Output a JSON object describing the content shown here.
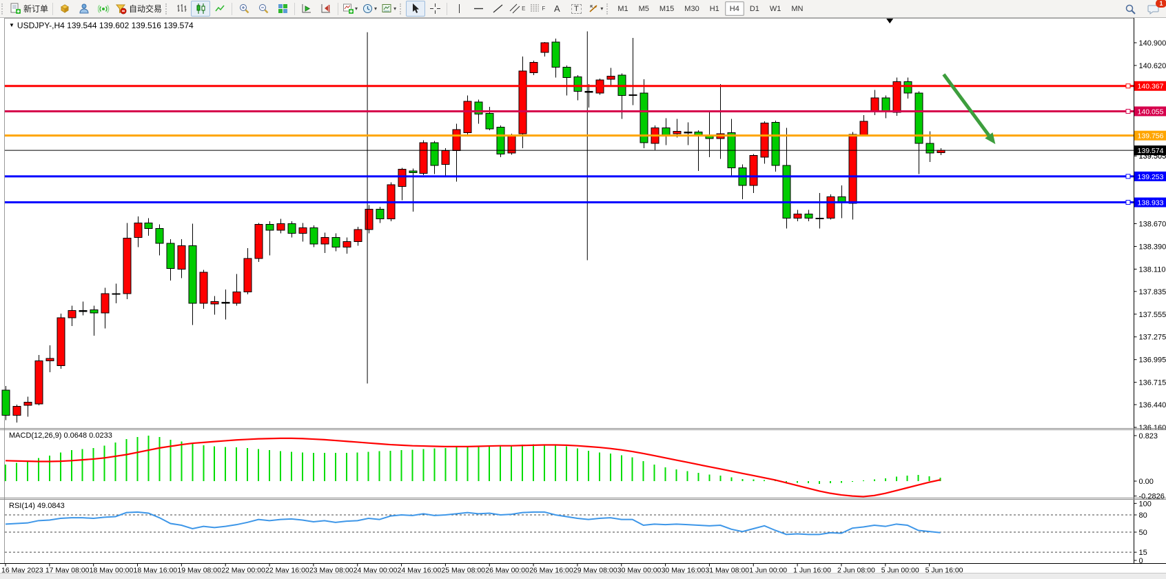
{
  "toolbar": {
    "new_order_label": "新订单",
    "auto_trading_label": "自动交易",
    "timeframes": [
      "M1",
      "M5",
      "M15",
      "M30",
      "H1",
      "H4",
      "D1",
      "W1",
      "MN"
    ],
    "active_timeframe": "H4",
    "notification_count": "1",
    "icon_glyphs": {
      "text_tool": "A",
      "label_tool": "T",
      "channel_suffix": "E",
      "fibo_suffix": "F"
    },
    "icons": [
      "new-order",
      "market",
      "signals",
      "news",
      "auto-trading",
      "bar-chart",
      "candlestick-chart",
      "line-chart",
      "zoom-in",
      "zoom-out",
      "tile-windows",
      "auto-scroll",
      "chart-shift",
      "indicators",
      "periods",
      "templates",
      "cursor",
      "crosshair",
      "vertical-line",
      "horizontal-line",
      "trendline",
      "equidistant-channel",
      "fibonacci",
      "text",
      "text-label",
      "arrows",
      "search",
      "chat"
    ]
  },
  "chart": {
    "dropdown_glyph": "▼",
    "title": "USDJPY-,H4  139.544 139.602 139.516 139.574",
    "symbol": "USDJPY-",
    "period": "H4"
  },
  "indicators": {
    "macd": {
      "label": "MACD(12,26,9) 0.0648 0.0233"
    },
    "rsi": {
      "label": "RSI(14) 49.0843"
    }
  },
  "colors": {
    "bull": "#ff0000",
    "bear": "#00cc00",
    "wick": "#000000",
    "macd_hist": "#00dd00",
    "macd_signal": "#ff0000",
    "rsi": "#3d96e8",
    "line_red": "#ff0000",
    "line_crimson": "#d6004c",
    "line_orange": "#ffa500",
    "line_blue": "#0000ff",
    "line_black": "#000000",
    "arrow": "#3d9e3d"
  },
  "chart_data": {
    "type": "candlestick",
    "symbol": "USDJPY-",
    "timeframe": "H4",
    "ylim": [
      136.16,
      140.96
    ],
    "ohlc_current": {
      "open": 139.544,
      "high": 139.602,
      "low": 139.516,
      "close": 139.574
    },
    "y_ticks": [
      140.9,
      140.62,
      139.505,
      138.67,
      138.39,
      138.11,
      137.835,
      137.555,
      137.275,
      136.995,
      136.715,
      136.44,
      136.16
    ],
    "label_step": 4,
    "time_labels": [
      "16 May 2023",
      "17 May 08:00",
      "18 May 00:00",
      "18 May 16:00",
      "19 May 08:00",
      "22 May 00:00",
      "22 May 16:00",
      "23 May 08:00",
      "24 May 00:00",
      "24 May 16:00",
      "25 May 08:00",
      "26 May 00:00",
      "26 May 16:00",
      "29 May 08:00",
      "30 May 00:00",
      "30 May 16:00",
      "31 May 08:00",
      "1 Jun 00:00",
      "1 Jun 16:00",
      "2 Jun 08:00",
      "5 Jun 00:00",
      "5 Jun 16:00"
    ],
    "candles": [
      [
        136.62,
        136.67,
        136.25,
        136.31
      ],
      [
        136.31,
        136.44,
        136.22,
        136.42
      ],
      [
        136.43,
        136.54,
        136.29,
        136.47
      ],
      [
        136.45,
        137.05,
        136.43,
        136.98
      ],
      [
        136.98,
        137.17,
        136.84,
        137.01
      ],
      [
        136.92,
        137.56,
        136.88,
        137.51
      ],
      [
        137.51,
        137.66,
        137.41,
        137.6
      ],
      [
        137.6,
        137.71,
        137.54,
        137.6
      ],
      [
        137.61,
        137.66,
        137.29,
        137.57
      ],
      [
        137.57,
        137.88,
        137.38,
        137.81
      ],
      [
        137.81,
        137.93,
        137.69,
        137.81
      ],
      [
        137.81,
        138.68,
        137.74,
        138.49
      ],
      [
        138.5,
        138.76,
        138.38,
        138.68
      ],
      [
        138.68,
        138.74,
        138.52,
        138.61
      ],
      [
        138.61,
        138.66,
        138.28,
        138.43
      ],
      [
        138.43,
        138.48,
        137.97,
        138.12
      ],
      [
        138.11,
        138.48,
        138.0,
        138.4
      ],
      [
        138.4,
        138.67,
        137.42,
        137.69
      ],
      [
        137.69,
        138.1,
        137.62,
        138.07
      ],
      [
        137.68,
        137.78,
        137.55,
        137.71
      ],
      [
        137.7,
        137.86,
        137.49,
        137.7
      ],
      [
        137.69,
        138.05,
        137.66,
        137.83
      ],
      [
        137.83,
        138.37,
        137.8,
        138.24
      ],
      [
        138.24,
        138.68,
        138.2,
        138.66
      ],
      [
        138.66,
        138.7,
        138.28,
        138.59
      ],
      [
        138.59,
        138.73,
        138.55,
        138.67
      ],
      [
        138.67,
        138.7,
        138.5,
        138.55
      ],
      [
        138.55,
        138.68,
        138.45,
        138.62
      ],
      [
        138.62,
        138.65,
        138.38,
        138.42
      ],
      [
        138.42,
        138.56,
        138.31,
        138.5
      ],
      [
        138.5,
        138.55,
        138.33,
        138.38
      ],
      [
        138.38,
        138.5,
        138.3,
        138.45
      ],
      [
        138.45,
        138.63,
        138.4,
        138.6
      ],
      [
        138.6,
        138.9,
        138.55,
        138.85
      ],
      [
        138.85,
        138.88,
        138.68,
        138.73
      ],
      [
        138.73,
        139.18,
        138.7,
        139.15
      ],
      [
        139.13,
        139.36,
        138.96,
        139.34
      ],
      [
        139.32,
        139.35,
        138.82,
        139.3
      ],
      [
        139.29,
        139.7,
        139.27,
        139.67
      ],
      [
        139.67,
        139.69,
        139.28,
        139.39
      ],
      [
        139.4,
        139.6,
        139.26,
        139.57
      ],
      [
        139.57,
        139.9,
        139.19,
        139.83
      ],
      [
        139.79,
        140.25,
        139.77,
        140.18
      ],
      [
        140.17,
        140.2,
        139.9,
        140.02
      ],
      [
        140.03,
        140.11,
        139.82,
        139.84
      ],
      [
        139.86,
        139.88,
        139.49,
        139.53
      ],
      [
        139.54,
        139.78,
        139.52,
        139.76
      ],
      [
        139.78,
        140.73,
        139.6,
        140.55
      ],
      [
        140.53,
        140.68,
        140.5,
        140.66
      ],
      [
        140.78,
        140.91,
        140.73,
        140.9
      ],
      [
        140.91,
        140.95,
        140.47,
        140.6
      ],
      [
        140.6,
        140.62,
        140.25,
        140.47
      ],
      [
        140.48,
        140.5,
        140.19,
        140.3
      ],
      [
        140.3,
        140.39,
        140.1,
        140.3
      ],
      [
        140.28,
        140.46,
        140.26,
        140.44
      ],
      [
        140.45,
        140.59,
        140.36,
        140.49
      ],
      [
        140.5,
        140.52,
        139.96,
        140.25
      ],
      [
        140.26,
        140.96,
        140.13,
        140.26
      ],
      [
        140.28,
        140.45,
        139.6,
        139.67
      ],
      [
        139.66,
        139.88,
        139.58,
        139.85
      ],
      [
        139.85,
        139.97,
        139.64,
        139.76
      ],
      [
        139.78,
        139.96,
        139.73,
        139.81
      ],
      [
        139.8,
        139.92,
        139.64,
        139.8
      ],
      [
        139.8,
        139.82,
        139.32,
        139.76
      ],
      [
        139.76,
        140.04,
        139.49,
        139.72
      ],
      [
        139.72,
        140.39,
        139.47,
        139.78
      ],
      [
        139.79,
        139.96,
        139.26,
        139.36
      ],
      [
        139.36,
        139.4,
        138.97,
        139.14
      ],
      [
        139.14,
        139.53,
        139.05,
        139.51
      ],
      [
        139.49,
        139.93,
        139.41,
        139.91
      ],
      [
        139.92,
        139.94,
        139.31,
        139.39
      ],
      [
        139.39,
        139.85,
        138.61,
        138.74
      ],
      [
        138.74,
        138.84,
        138.7,
        138.79
      ],
      [
        138.79,
        138.84,
        138.7,
        138.74
      ],
      [
        138.74,
        139.05,
        138.61,
        138.74
      ],
      [
        138.74,
        139.03,
        138.72,
        139.0
      ],
      [
        139.0,
        139.14,
        138.74,
        138.93
      ],
      [
        138.92,
        139.8,
        138.72,
        139.77
      ],
      [
        139.76,
        140.01,
        139.75,
        139.93
      ],
      [
        140.05,
        140.32,
        140.01,
        140.22
      ],
      [
        140.22,
        140.25,
        139.97,
        140.05
      ],
      [
        140.04,
        140.47,
        140.0,
        140.42
      ],
      [
        140.42,
        140.47,
        140.21,
        140.28
      ],
      [
        140.28,
        140.3,
        139.28,
        139.66
      ],
      [
        139.66,
        139.81,
        139.43,
        139.54
      ],
      [
        139.544,
        139.602,
        139.516,
        139.574
      ]
    ],
    "horizontal_lines": [
      {
        "price": 140.367,
        "badge": "140.367",
        "color_key": "line_red",
        "width": 3,
        "handle": true
      },
      {
        "price": 140.055,
        "badge": "140.055",
        "color_key": "line_crimson",
        "width": 3,
        "handle": true
      },
      {
        "price": 139.756,
        "badge": "139.756",
        "color_key": "line_orange",
        "width": 3,
        "handle": false
      },
      {
        "price": 139.253,
        "badge": "139.253",
        "color_key": "line_blue",
        "width": 3,
        "handle": true
      },
      {
        "price": 138.933,
        "badge": "138.933",
        "color_key": "line_blue",
        "width": 3,
        "handle": true
      }
    ],
    "current_price_line": {
      "price": 139.574,
      "badge": "139.574"
    },
    "extra_tick": {
      "price": 139.505,
      "label": "139.505"
    },
    "vertical_segments": [
      {
        "bar": 32.9,
        "from": 141.03,
        "to": 136.7
      },
      {
        "bar": 52.9,
        "from": 141.04,
        "to": 138.22
      }
    ],
    "arrow": {
      "x1_bar": 85.3,
      "y1_price": 140.51,
      "x2_bar": 90.0,
      "y2_price": 139.65
    },
    "shift_marker_bar": 80.4,
    "macd": {
      "title": "MACD(12,26,9)",
      "current_main": 0.0648,
      "current_signal": 0.0233,
      "axis_labels": [
        "0.823",
        "0.00",
        "-0.2826"
      ],
      "axis_max": 0.823,
      "axis_min": -0.2826,
      "histogram": [
        0.3,
        0.33,
        0.36,
        0.42,
        0.46,
        0.52,
        0.56,
        0.58,
        0.6,
        0.64,
        0.7,
        0.76,
        0.8,
        0.823,
        0.8,
        0.75,
        0.72,
        0.68,
        0.65,
        0.63,
        0.62,
        0.61,
        0.6,
        0.58,
        0.56,
        0.54,
        0.53,
        0.52,
        0.51,
        0.51,
        0.51,
        0.51,
        0.52,
        0.53,
        0.54,
        0.55,
        0.56,
        0.57,
        0.58,
        0.59,
        0.6,
        0.62,
        0.63,
        0.64,
        0.65,
        0.64,
        0.64,
        0.66,
        0.67,
        0.67,
        0.66,
        0.63,
        0.59,
        0.55,
        0.52,
        0.5,
        0.47,
        0.43,
        0.36,
        0.3,
        0.25,
        0.21,
        0.18,
        0.15,
        0.12,
        0.1,
        0.07,
        0.04,
        0.03,
        0.02,
        0.01,
        -0.02,
        -0.03,
        -0.04,
        -0.05,
        -0.04,
        -0.03,
        -0.01,
        0.01,
        0.03,
        0.05,
        0.08,
        0.1,
        0.11,
        0.09,
        0.0648
      ],
      "signal": [
        0.37,
        0.365,
        0.36,
        0.355,
        0.355,
        0.36,
        0.37,
        0.385,
        0.4,
        0.42,
        0.45,
        0.48,
        0.52,
        0.56,
        0.6,
        0.63,
        0.66,
        0.685,
        0.7,
        0.715,
        0.73,
        0.745,
        0.755,
        0.765,
        0.77,
        0.775,
        0.775,
        0.77,
        0.76,
        0.75,
        0.735,
        0.72,
        0.705,
        0.69,
        0.675,
        0.66,
        0.65,
        0.64,
        0.635,
        0.63,
        0.625,
        0.625,
        0.625,
        0.63,
        0.635,
        0.64,
        0.64,
        0.645,
        0.65,
        0.655,
        0.655,
        0.65,
        0.64,
        0.625,
        0.61,
        0.59,
        0.565,
        0.535,
        0.5,
        0.46,
        0.42,
        0.38,
        0.34,
        0.3,
        0.26,
        0.22,
        0.18,
        0.14,
        0.1,
        0.06,
        0.02,
        -0.03,
        -0.08,
        -0.13,
        -0.18,
        -0.22,
        -0.25,
        -0.27,
        -0.28,
        -0.26,
        -0.22,
        -0.17,
        -0.12,
        -0.07,
        -0.02,
        0.0233
      ]
    },
    "rsi": {
      "title": "RSI(14)",
      "current": 49.0843,
      "axis_labels": [
        "100",
        "80",
        "50",
        "15",
        "0"
      ],
      "levels": [
        80,
        50,
        15
      ],
      "values": [
        64,
        65,
        66,
        70,
        71,
        74,
        75,
        75,
        74,
        76,
        77,
        84,
        85,
        83,
        75,
        65,
        62,
        56,
        60,
        58,
        60,
        63,
        67,
        72,
        70,
        72,
        73,
        71,
        68,
        70,
        67,
        69,
        70,
        74,
        72,
        78,
        80,
        79,
        82,
        79,
        80,
        82,
        84,
        82,
        83,
        80,
        81,
        84,
        85,
        85,
        80,
        77,
        74,
        72,
        74,
        75,
        72,
        72,
        62,
        64,
        63,
        64,
        63,
        62,
        61,
        62,
        55,
        51,
        56,
        61,
        53,
        46,
        47,
        46,
        46,
        49,
        48,
        57,
        59,
        62,
        60,
        64,
        62,
        53,
        51,
        49.08
      ]
    }
  }
}
